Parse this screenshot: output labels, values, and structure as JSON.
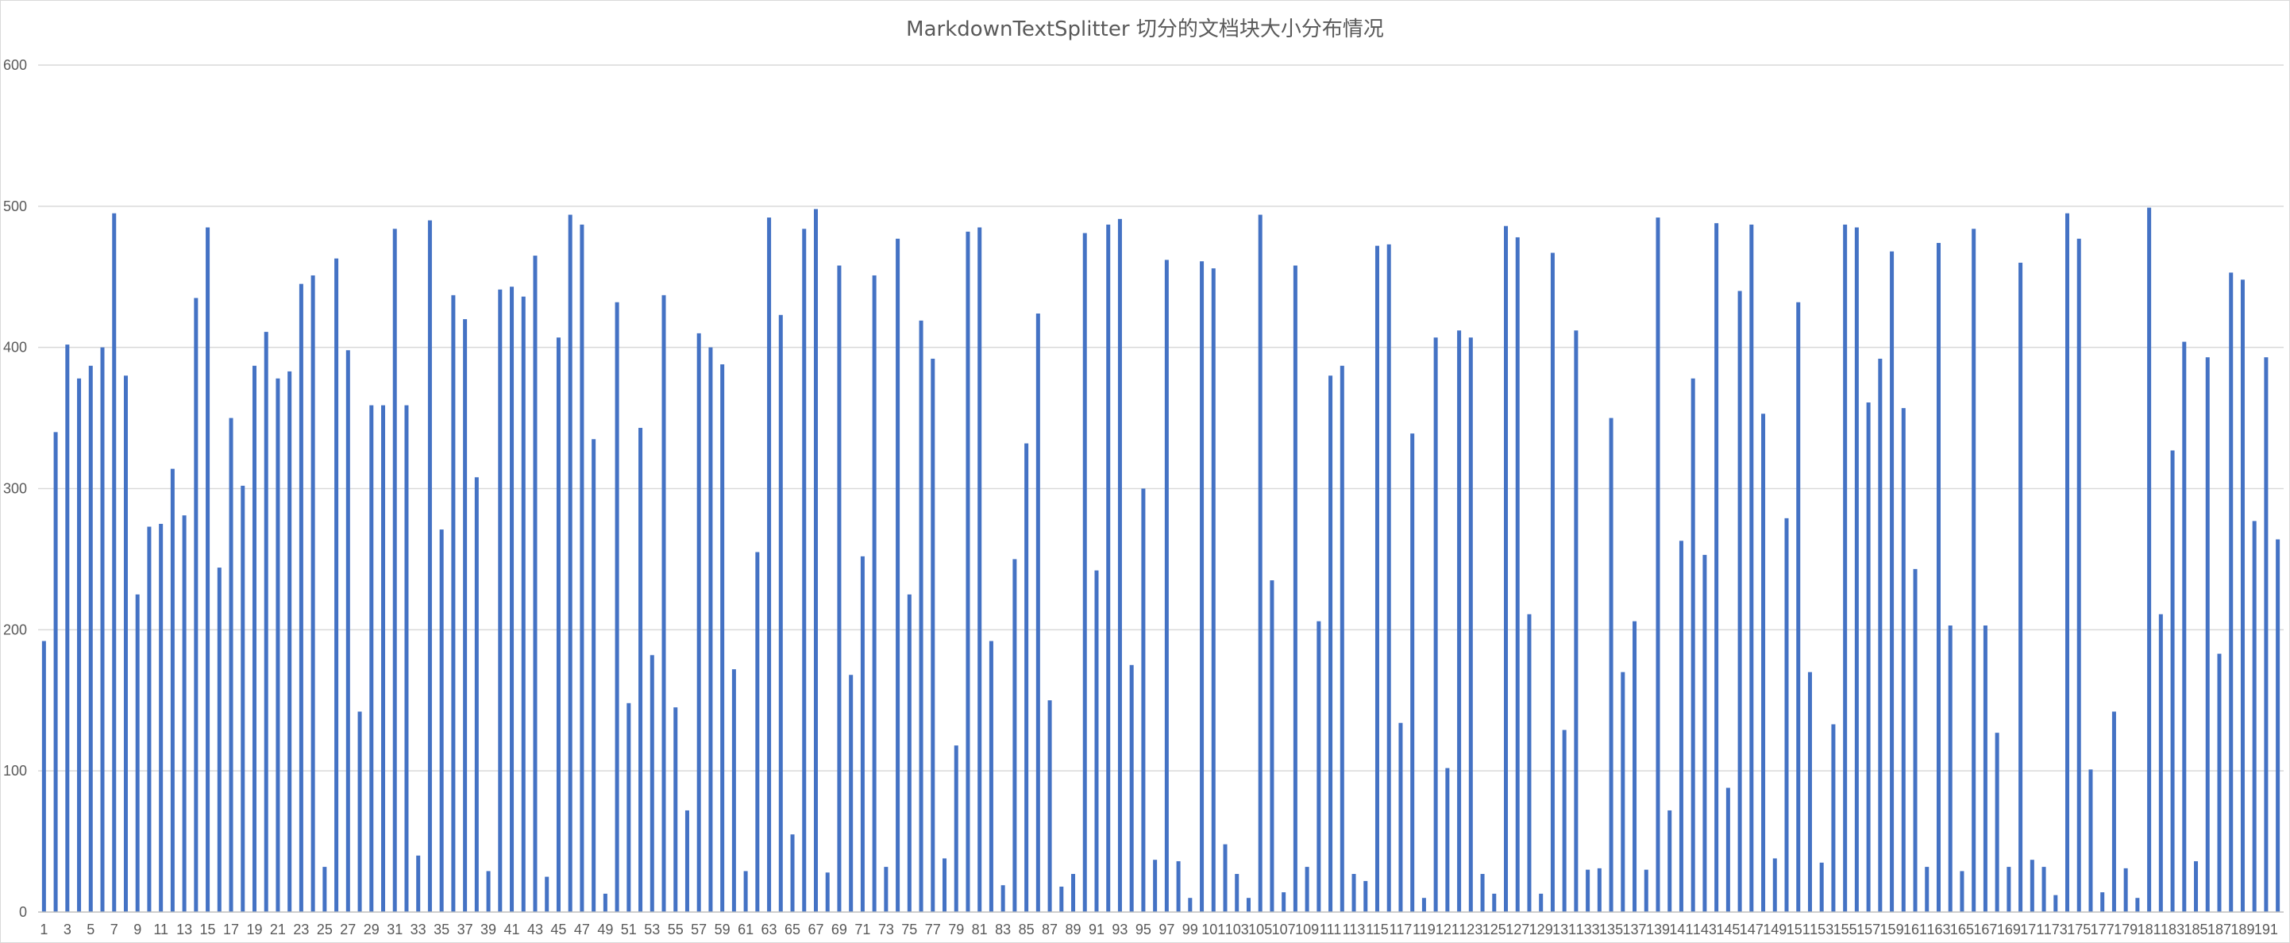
{
  "chart_data": {
    "type": "bar",
    "title": "MarkdownTextSplitter 切分的文档块大小分布情况",
    "xlabel": "",
    "ylabel": "",
    "ylim": [
      0,
      600
    ],
    "yticks": [
      0,
      100,
      200,
      300,
      400,
      500,
      600
    ],
    "grid": true,
    "legend": "none",
    "bar_color": "#4472c4",
    "x_tick_labels": [
      "1",
      "3",
      "5",
      "7",
      "9",
      "11",
      "13",
      "15",
      "17",
      "19",
      "21",
      "23",
      "25",
      "27",
      "29",
      "31",
      "33",
      "35",
      "37",
      "39",
      "41",
      "43",
      "45",
      "47",
      "49",
      "51",
      "53",
      "55",
      "57",
      "59",
      "61",
      "63",
      "65",
      "67",
      "69",
      "71",
      "73",
      "75",
      "77",
      "79",
      "81",
      "83",
      "85",
      "87",
      "89",
      "91",
      "93",
      "95",
      "97",
      "99",
      "101",
      "103",
      "105",
      "107",
      "109",
      "111",
      "113",
      "115",
      "117",
      "119",
      "121",
      "123",
      "125",
      "127",
      "129",
      "131",
      "133",
      "135",
      "137",
      "139",
      "141",
      "143",
      "145",
      "147",
      "149",
      "151",
      "153",
      "155",
      "157",
      "159",
      "161",
      "163",
      "165",
      "167",
      "169",
      "171",
      "173",
      "175",
      "177",
      "179",
      "181",
      "183",
      "185",
      "187",
      "189",
      "191"
    ],
    "categories": [
      1,
      2,
      3,
      4,
      5,
      6,
      7,
      8,
      9,
      10,
      11,
      12,
      13,
      14,
      15,
      16,
      17,
      18,
      19,
      20,
      21,
      22,
      23,
      24,
      25,
      26,
      27,
      28,
      29,
      30,
      31,
      32,
      33,
      34,
      35,
      36,
      37,
      38,
      39,
      40,
      41,
      42,
      43,
      44,
      45,
      46,
      47,
      48,
      49,
      50,
      51,
      52,
      53,
      54,
      55,
      56,
      57,
      58,
      59,
      60,
      61,
      62,
      63,
      64,
      65,
      66,
      67,
      68,
      69,
      70,
      71,
      72,
      73,
      74,
      75,
      76,
      77,
      78,
      79,
      80,
      81,
      82,
      83,
      84,
      85,
      86,
      87,
      88,
      89,
      90,
      91,
      92,
      93,
      94,
      95,
      96,
      97,
      98,
      99,
      100,
      101,
      102,
      103,
      104,
      105,
      106,
      107,
      108,
      109,
      110,
      111,
      112,
      113,
      114,
      115,
      116,
      117,
      118,
      119,
      120,
      121,
      122,
      123,
      124,
      125,
      126,
      127,
      128,
      129,
      130,
      131,
      132,
      133,
      134,
      135,
      136,
      137,
      138,
      139,
      140,
      141,
      142,
      143,
      144,
      145,
      146,
      147,
      148,
      149,
      150,
      151,
      152,
      153,
      154,
      155,
      156,
      157,
      158,
      159,
      160,
      161,
      162,
      163,
      164,
      165,
      166,
      167,
      168,
      169,
      170,
      171,
      172,
      173,
      174,
      175,
      176,
      177,
      178,
      179,
      180,
      181,
      182,
      183,
      184,
      185,
      186,
      187,
      188,
      189,
      190,
      191,
      192
    ],
    "values": [
      192,
      340,
      402,
      378,
      387,
      400,
      495,
      380,
      225,
      273,
      275,
      314,
      281,
      435,
      485,
      244,
      350,
      302,
      387,
      411,
      378,
      383,
      445,
      451,
      32,
      463,
      398,
      142,
      359,
      359,
      484,
      359,
      40,
      490,
      271,
      437,
      420,
      308,
      29,
      441,
      443,
      436,
      465,
      25,
      407,
      494,
      487,
      335,
      13,
      432,
      148,
      343,
      182,
      437,
      145,
      72,
      410,
      400,
      388,
      172,
      29,
      255,
      492,
      423,
      55,
      484,
      498,
      28,
      458,
      168,
      252,
      451,
      32,
      477,
      225,
      419,
      392,
      38,
      118,
      482,
      485,
      192,
      19,
      250,
      332,
      424,
      150,
      18,
      27,
      481,
      242,
      487,
      491,
      175,
      300,
      37,
      462,
      36,
      10,
      461,
      456,
      48,
      27,
      10,
      494,
      235,
      14,
      458,
      32,
      206,
      380,
      387,
      27,
      22,
      472,
      473,
      134,
      339,
      10,
      407,
      102,
      412,
      407,
      27,
      13,
      486,
      478,
      211,
      13,
      467,
      129,
      412,
      30,
      31,
      350,
      170,
      206,
      30,
      492,
      72,
      263,
      378,
      253,
      488,
      88,
      440,
      487,
      353,
      38,
      279,
      432,
      170,
      35,
      133,
      487,
      485,
      361,
      392,
      468,
      357,
      243,
      32,
      474,
      203,
      29,
      484,
      203,
      127,
      32,
      460,
      37,
      32,
      12,
      495,
      477,
      101,
      14,
      142,
      31,
      10,
      499,
      211,
      327,
      404,
      36,
      393,
      183,
      453,
      448,
      277,
      393,
      264
    ]
  }
}
